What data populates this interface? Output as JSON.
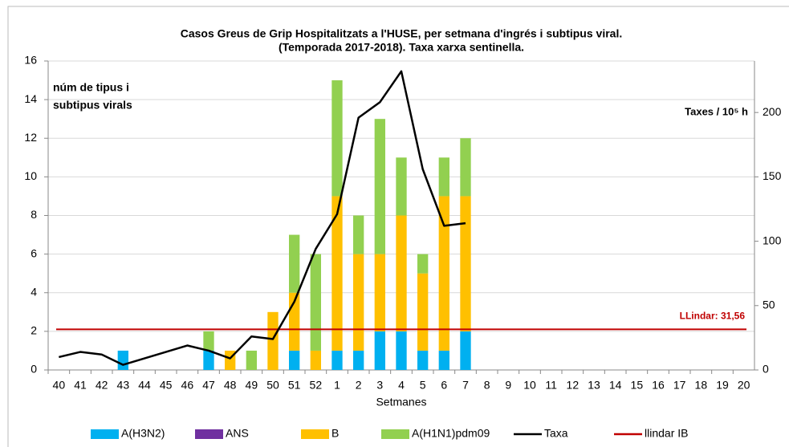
{
  "chart_data": {
    "type": "bar",
    "title": [
      "Casos Greus de Grip Hospitalitzats a l'HUSE, per setmana  d'ingrés i subtipus viral.",
      "(Temporada 2017-2018).  Taxa xarxa sentinella."
    ],
    "y_label": [
      "núm de tipus i",
      "subtipus virals"
    ],
    "y2_label": "Taxes / 10⁵ h",
    "x_label": "Setmanes",
    "stacked": true,
    "categories": [
      "40",
      "41",
      "42",
      "43",
      "44",
      "45",
      "46",
      "47",
      "48",
      "49",
      "50",
      "51",
      "52",
      "1",
      "2",
      "3",
      "4",
      "5",
      "6",
      "7",
      "8",
      "9",
      "10",
      "11",
      "12",
      "13",
      "14",
      "15",
      "16",
      "17",
      "18",
      "19",
      "20"
    ],
    "series": [
      {
        "name": "A(H3N2)",
        "color": "#00b0f0",
        "values": [
          0,
          0,
          0,
          1,
          0,
          0,
          0,
          1,
          0,
          0,
          0,
          1,
          0,
          1,
          1,
          2,
          2,
          1,
          1,
          2,
          0,
          0,
          0,
          0,
          0,
          0,
          0,
          0,
          0,
          0,
          0,
          0,
          0
        ]
      },
      {
        "name": "ANS",
        "color": "#7030a0",
        "values": [
          0,
          0,
          0,
          0,
          0,
          0,
          0,
          0,
          0,
          0,
          0,
          0,
          0,
          0,
          0,
          0,
          0,
          0,
          0,
          0,
          0,
          0,
          0,
          0,
          0,
          0,
          0,
          0,
          0,
          0,
          0,
          0,
          0
        ]
      },
      {
        "name": "B",
        "color": "#ffc000",
        "values": [
          0,
          0,
          0,
          0,
          0,
          0,
          0,
          0,
          1,
          0,
          3,
          3,
          1,
          8,
          5,
          4,
          6,
          4,
          8,
          7,
          0,
          0,
          0,
          0,
          0,
          0,
          0,
          0,
          0,
          0,
          0,
          0,
          0
        ]
      },
      {
        "name": "A(H1N1)pdm09",
        "color": "#92d050",
        "values": [
          0,
          0,
          0,
          0,
          0,
          0,
          0,
          1,
          0,
          1,
          0,
          3,
          5,
          6,
          2,
          7,
          3,
          1,
          2,
          3,
          0,
          0,
          0,
          0,
          0,
          0,
          0,
          0,
          0,
          0,
          0,
          0,
          0
        ]
      },
      {
        "name": "Taxa",
        "color": "#000000",
        "axis": "y2",
        "type": "line",
        "values": [
          10,
          14,
          12,
          4,
          9,
          14,
          19,
          15,
          9,
          26,
          24,
          53,
          94,
          121,
          196,
          208,
          232,
          156,
          112,
          114,
          null,
          null,
          null,
          null,
          null,
          null,
          null,
          null,
          null,
          null,
          null,
          null,
          null
        ]
      }
    ],
    "threshold": {
      "name": "llindar IB",
      "value": 31.56,
      "label": "LLindar: 31,56",
      "color": "#c00000",
      "axis": "y2"
    },
    "ylim": [
      0,
      16
    ],
    "yticks": [
      0,
      2,
      4,
      6,
      8,
      10,
      12,
      14,
      16
    ],
    "y2lim": [
      0,
      240
    ],
    "y2ticks": [
      0,
      50,
      100,
      150,
      200
    ],
    "grid": true
  }
}
